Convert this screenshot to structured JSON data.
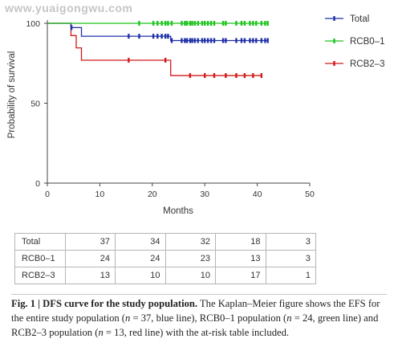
{
  "watermark": "www.yuaigongwu.com",
  "chart_data": {
    "type": "line",
    "title": "",
    "xlabel": "Months",
    "ylabel": "Probability of survival",
    "xlim": [
      0,
      50
    ],
    "ylim": [
      0,
      100
    ],
    "xticks": [
      "0",
      "10",
      "20",
      "30",
      "40",
      "50"
    ],
    "yticks": [
      "0",
      "50",
      "100"
    ],
    "legend_position": "top-right",
    "series": [
      {
        "name": "Total",
        "color": "#1f2fa8",
        "steps": [
          [
            0,
            100
          ],
          [
            4.5,
            97.3
          ],
          [
            6.5,
            91.9
          ],
          [
            23.5,
            89.2
          ],
          [
            42,
            89.2
          ]
        ],
        "censor": [
          4.6,
          15.5,
          17.5,
          20.2,
          21.0,
          21.8,
          22.5,
          23.0,
          23.7,
          25.6,
          26.2,
          26.6,
          27.2,
          27.6,
          28.1,
          28.7,
          29.5,
          30.0,
          30.6,
          31.2,
          31.8,
          33.5,
          34.0,
          36.0,
          37.0,
          37.6,
          38.6,
          39.2,
          39.8,
          40.8,
          41.5,
          42.0
        ]
      },
      {
        "name": "RCB0–1",
        "color": "#1fc41f",
        "steps": [
          [
            0,
            100
          ],
          [
            42,
            100
          ]
        ],
        "censor": [
          17.5,
          20.2,
          21.0,
          21.8,
          22.5,
          23.0,
          23.7,
          25.6,
          26.2,
          26.6,
          27.2,
          27.6,
          28.1,
          28.7,
          29.5,
          30.0,
          30.6,
          31.2,
          31.8,
          33.5,
          34.0,
          36.0,
          37.0,
          37.6,
          38.6,
          39.2,
          39.8,
          40.8,
          41.5,
          42.0
        ]
      },
      {
        "name": "RCB2–3",
        "color": "#d11a1a",
        "steps": [
          [
            0,
            100
          ],
          [
            4.5,
            92.3
          ],
          [
            5.5,
            84.6
          ],
          [
            6.5,
            76.9
          ],
          [
            23.5,
            67.3
          ],
          [
            40.8,
            67.3
          ]
        ],
        "censor": [
          15.5,
          22.5,
          27.2,
          30.0,
          31.8,
          34.0,
          36.0,
          37.6,
          39.2,
          40.8
        ]
      }
    ],
    "at_risk": {
      "rows": [
        {
          "label": "Total",
          "values": [
            "37",
            "34",
            "32",
            "18",
            "3"
          ]
        },
        {
          "label": "RCB0–1",
          "values": [
            "24",
            "24",
            "23",
            "13",
            "3"
          ]
        },
        {
          "label": "RCB2–3",
          "values": [
            "13",
            "10",
            "10",
            "17",
            "1"
          ]
        }
      ]
    }
  },
  "caption": {
    "label": "Fig. 1 | DFS curve for the study population.",
    "text_a": " The Kaplan–Meier figure shows the EFS for the entire study population (",
    "n_a": "n",
    "text_b": " = 37, blue line), RCB0–1 population (",
    "n_b": "n",
    "text_c": " = 24, green line) and RCB2–3 population (",
    "n_c": "n",
    "text_d": " = 13, red line) with the at-risk table included."
  }
}
